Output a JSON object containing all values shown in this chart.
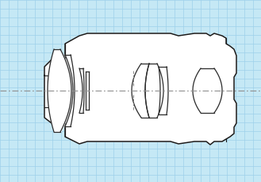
{
  "bg_color": "#c5e8f5",
  "grid_color": "#9dd0ea",
  "lens_body_color": "#ffffff",
  "lens_outline_color": "#1a1a1a",
  "optical_axis_color": "#909090",
  "lens_element_color": "#2a2a2a",
  "figsize": [
    3.29,
    2.29
  ],
  "dpi": 100,
  "x_range": [
    0,
    329
  ],
  "y_range": [
    0,
    229
  ],
  "grid_step": 11,
  "body_lw": 1.1,
  "lens_lw": 0.9,
  "axis_lw": 0.8
}
